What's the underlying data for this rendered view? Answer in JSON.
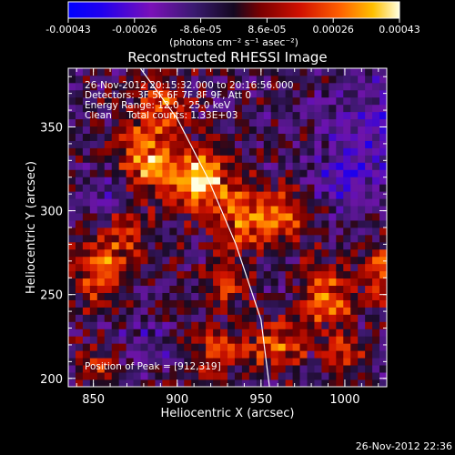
{
  "chart_data": {
    "type": "heatmap",
    "title": "Reconstructed RHESSI Image",
    "xlabel": "Heliocentric X (arcsec)",
    "ylabel": "Heliocentric Y (arcsec)",
    "xlim": [
      835,
      1025
    ],
    "ylim": [
      195,
      385
    ],
    "x_ticks": [
      850,
      900,
      950,
      1000
    ],
    "y_ticks": [
      200,
      250,
      300,
      350
    ],
    "colorbar": {
      "min": -0.00043,
      "max": 0.00043,
      "ticks": [
        "-0.00043",
        "-0.00026",
        "-8.6e-05",
        "8.6e-05",
        "0.00026",
        "0.00043"
      ],
      "unit_label": "(photons cm⁻² s⁻¹ asec⁻²)"
    },
    "annotations": [
      "26-Nov-2012 20:15:32.000 to 20:16:56.000",
      "Detectors: 3F 5F 6F 7F 8F 9F, Att 0",
      "Energy Range: 12.0 - 25.0 keV",
      "Clean     Total counts: 1.33E+03"
    ],
    "peak_label": "Position of Peak = [912,319]",
    "peak_position": [
      912,
      319
    ],
    "limb_curve": [
      [
        878,
        385
      ],
      [
        900,
        355
      ],
      [
        918,
        320
      ],
      [
        935,
        280
      ],
      [
        950,
        235
      ],
      [
        955,
        195
      ]
    ],
    "emission_sources": [
      {
        "x": 912,
        "y": 319,
        "amp": 1.0,
        "sx": 14,
        "sy": 12
      },
      {
        "x": 880,
        "y": 330,
        "amp": 0.75,
        "sx": 12,
        "sy": 14
      },
      {
        "x": 940,
        "y": 295,
        "amp": 0.7,
        "sx": 14,
        "sy": 12
      },
      {
        "x": 965,
        "y": 300,
        "amp": 0.55,
        "sx": 12,
        "sy": 10
      },
      {
        "x": 855,
        "y": 265,
        "amp": 0.65,
        "sx": 12,
        "sy": 14
      },
      {
        "x": 890,
        "y": 360,
        "amp": 0.6,
        "sx": 12,
        "sy": 12
      },
      {
        "x": 930,
        "y": 255,
        "amp": 0.55,
        "sx": 10,
        "sy": 10
      },
      {
        "x": 990,
        "y": 250,
        "amp": 0.7,
        "sx": 12,
        "sy": 14
      },
      {
        "x": 1020,
        "y": 265,
        "amp": 0.6,
        "sx": 8,
        "sy": 12
      },
      {
        "x": 925,
        "y": 215,
        "amp": 0.55,
        "sx": 12,
        "sy": 10
      },
      {
        "x": 960,
        "y": 220,
        "amp": 0.6,
        "sx": 12,
        "sy": 10
      },
      {
        "x": 850,
        "y": 210,
        "amp": 0.45,
        "sx": 10,
        "sy": 10
      },
      {
        "x": 1000,
        "y": 215,
        "amp": 0.5,
        "sx": 10,
        "sy": 8
      },
      {
        "x": 870,
        "y": 290,
        "amp": 0.5,
        "sx": 10,
        "sy": 10
      },
      {
        "x": 1015,
        "y": 350,
        "amp": -0.45,
        "sx": 14,
        "sy": 18
      },
      {
        "x": 1000,
        "y": 315,
        "amp": -0.4,
        "sx": 14,
        "sy": 14
      },
      {
        "x": 860,
        "y": 310,
        "amp": -0.35,
        "sx": 10,
        "sy": 10
      },
      {
        "x": 880,
        "y": 220,
        "amp": -0.3,
        "sx": 10,
        "sy": 10
      }
    ]
  },
  "footer": {
    "timestamp": "26-Nov-2012 22:36"
  }
}
